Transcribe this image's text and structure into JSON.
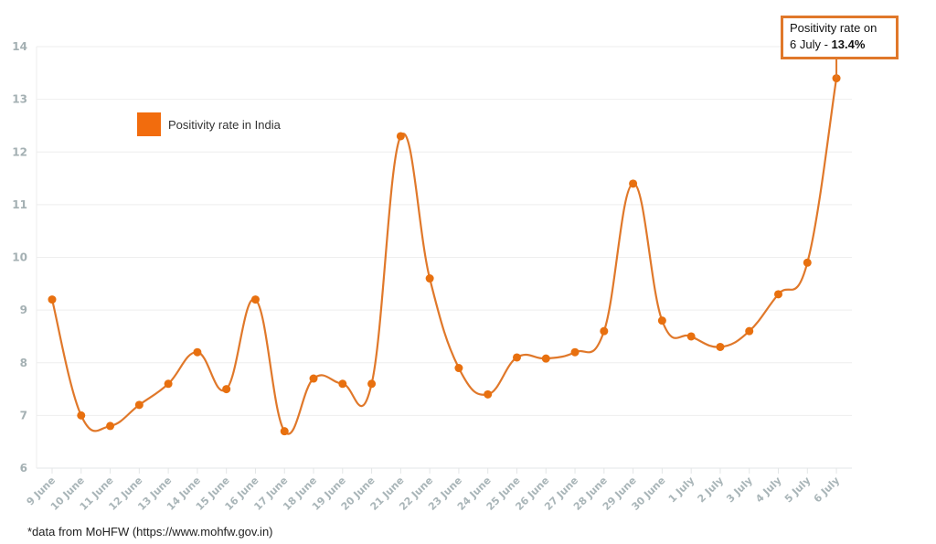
{
  "chart_data": {
    "type": "line",
    "title": "",
    "xlabel": "",
    "ylabel": "",
    "ylim": [
      6,
      14
    ],
    "yticks": [
      6,
      7,
      8,
      9,
      10,
      11,
      12,
      13,
      14
    ],
    "grid": true,
    "legend_position": "upper-left",
    "categories": [
      "9 June",
      "10 June",
      "11 June",
      "12 June",
      "13 June",
      "14 June",
      "15 June",
      "16 June",
      "17 June",
      "18 June",
      "19 June",
      "20 June",
      "21 June",
      "22 June",
      "23 June",
      "24 June",
      "25 June",
      "26 June",
      "27 June",
      "28 June",
      "29 June",
      "30 June",
      "1 July",
      "2 July",
      "3 July",
      "4 July",
      "5 July",
      "6 July"
    ],
    "series": [
      {
        "name": "Positivity rate in India",
        "color": "#e0782a",
        "values": [
          9.2,
          7.0,
          6.8,
          7.2,
          7.6,
          8.2,
          7.5,
          9.2,
          6.7,
          7.7,
          7.6,
          7.6,
          12.3,
          9.6,
          7.9,
          7.4,
          8.1,
          8.08,
          8.2,
          8.6,
          11.4,
          8.8,
          8.5,
          8.3,
          8.6,
          9.3,
          9.9,
          13.4
        ]
      }
    ],
    "annotations": [
      {
        "target": "6 July",
        "text_line1": "Positivity rate on",
        "text_line2_prefix": "6 July - ",
        "text_line2_bold": "13.4%"
      }
    ]
  },
  "legend": {
    "label": "Positivity rate in India",
    "swatch_color": "#f26c0d"
  },
  "annotation": {
    "line1": "Positivity rate on",
    "line2_prefix": "6 July - ",
    "line2_bold": "13.4%",
    "border_color": "#e0782a"
  },
  "source_note": "*data from MoHFW (https://www.mohfw.gov.in)"
}
